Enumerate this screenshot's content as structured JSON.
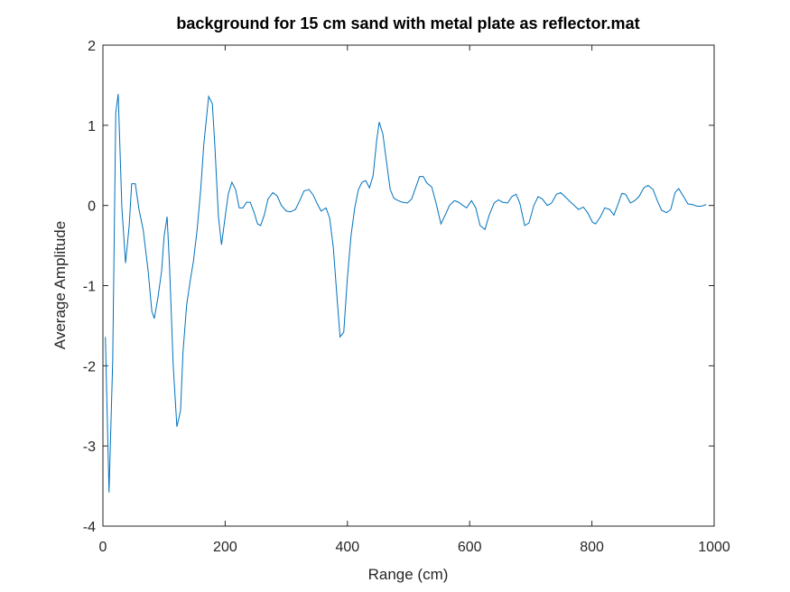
{
  "chart_data": {
    "type": "line",
    "title": "background for 15 cm sand with metal plate as reflector.mat",
    "x_label": "Range (cm)",
    "y_label": "Average Amplitude",
    "xlim": [
      0,
      1000
    ],
    "ylim": [
      -4,
      2
    ],
    "xticks": [
      0,
      200,
      400,
      600,
      800,
      1000
    ],
    "yticks": [
      -4,
      -3,
      -2,
      -1,
      0,
      1,
      2
    ],
    "series": [
      {
        "color": "#0072BD",
        "x": [
          4,
          10,
          16,
          21,
          25,
          31,
          37,
          43,
          47,
          53,
          59,
          66,
          74,
          80,
          84,
          90,
          96,
          100,
          105,
          109,
          115,
          121,
          127,
          131,
          137,
          143,
          148,
          154,
          160,
          165,
          173,
          179,
          183,
          189,
          194,
          199,
          205,
          211,
          217,
          223,
          229,
          235,
          241,
          247,
          253,
          258,
          264,
          270,
          278,
          285,
          292,
          300,
          307,
          315,
          322,
          329,
          337,
          344,
          352,
          357,
          365,
          371,
          377,
          383,
          388,
          394,
          400,
          406,
          412,
          418,
          424,
          430,
          436,
          442,
          448,
          452,
          458,
          464,
          470,
          476,
          483,
          490,
          498,
          505,
          513,
          518,
          524,
          530,
          538,
          545,
          553,
          560,
          567,
          575,
          582,
          589,
          595,
          603,
          610,
          617,
          625,
          632,
          640,
          647,
          654,
          662,
          669,
          676,
          682,
          690,
          697,
          705,
          712,
          719,
          727,
          734,
          742,
          749,
          756,
          764,
          771,
          778,
          786,
          793,
          801,
          806,
          814,
          821,
          829,
          836,
          842,
          849,
          855,
          863,
          870,
          877,
          885,
          892,
          900,
          907,
          914,
          922,
          929,
          936,
          942,
          950,
          957,
          965,
          972,
          979,
          987
        ],
        "values": [
          -1.64,
          -3.58,
          -1.94,
          1.16,
          1.39,
          -0.03,
          -0.72,
          -0.25,
          0.27,
          0.27,
          -0.05,
          -0.31,
          -0.82,
          -1.32,
          -1.41,
          -1.15,
          -0.82,
          -0.39,
          -0.14,
          -0.76,
          -2.0,
          -2.76,
          -2.56,
          -1.83,
          -1.24,
          -0.93,
          -0.7,
          -0.31,
          0.2,
          0.76,
          1.36,
          1.27,
          0.76,
          -0.14,
          -0.49,
          -0.2,
          0.14,
          0.29,
          0.2,
          -0.03,
          -0.03,
          0.04,
          0.04,
          -0.08,
          -0.23,
          -0.25,
          -0.12,
          0.08,
          0.16,
          0.12,
          0.0,
          -0.07,
          -0.08,
          -0.05,
          0.06,
          0.18,
          0.2,
          0.13,
          0.0,
          -0.07,
          -0.03,
          -0.16,
          -0.53,
          -1.15,
          -1.64,
          -1.58,
          -0.9,
          -0.37,
          -0.03,
          0.2,
          0.29,
          0.31,
          0.22,
          0.37,
          0.82,
          1.04,
          0.89,
          0.54,
          0.2,
          0.09,
          0.06,
          0.04,
          0.03,
          0.08,
          0.25,
          0.36,
          0.36,
          0.28,
          0.23,
          0.03,
          -0.23,
          -0.12,
          0.0,
          0.06,
          0.04,
          0.0,
          -0.03,
          0.06,
          -0.03,
          -0.25,
          -0.3,
          -0.12,
          0.03,
          0.07,
          0.04,
          0.03,
          0.11,
          0.14,
          0.03,
          -0.25,
          -0.22,
          0.0,
          0.11,
          0.08,
          0.0,
          0.03,
          0.14,
          0.16,
          0.11,
          0.05,
          0.0,
          -0.05,
          -0.02,
          -0.09,
          -0.21,
          -0.23,
          -0.14,
          -0.03,
          -0.05,
          -0.12,
          0.0,
          0.15,
          0.14,
          0.03,
          0.06,
          0.11,
          0.22,
          0.25,
          0.2,
          0.06,
          -0.06,
          -0.09,
          -0.05,
          0.16,
          0.21,
          0.11,
          0.02,
          0.01,
          -0.01,
          -0.01,
          0.01
        ]
      }
    ]
  }
}
